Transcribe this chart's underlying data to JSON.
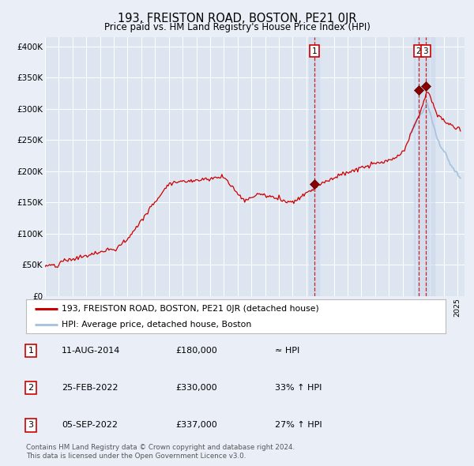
{
  "title": "193, FREISTON ROAD, BOSTON, PE21 0JR",
  "subtitle": "Price paid vs. HM Land Registry's House Price Index (HPI)",
  "background_color": "#eaeff7",
  "plot_bg_color": "#dde5f0",
  "grid_color": "#ffffff",
  "hpi_line_color": "#a8c4e0",
  "price_line_color": "#cc0000",
  "marker_color": "#990000",
  "ylabel_ticks": [
    "£0",
    "£50K",
    "£100K",
    "£150K",
    "£200K",
    "£250K",
    "£300K",
    "£350K",
    "£400K"
  ],
  "ylabel_values": [
    0,
    50000,
    100000,
    150000,
    200000,
    250000,
    300000,
    350000,
    400000
  ],
  "sale_dates": [
    2014.61,
    2022.15,
    2022.68
  ],
  "sale_prices": [
    180000,
    330000,
    337000
  ],
  "sale_labels": [
    "1",
    "2",
    "3"
  ],
  "legend_line1": "193, FREISTON ROAD, BOSTON, PE21 0JR (detached house)",
  "legend_line2": "HPI: Average price, detached house, Boston",
  "footer": "Contains HM Land Registry data © Crown copyright and database right 2024.\nThis data is licensed under the Open Government Licence v3.0.",
  "table_rows": [
    [
      "1",
      "11-AUG-2014",
      "£180,000",
      "≈ HPI"
    ],
    [
      "2",
      "25-FEB-2022",
      "£330,000",
      "33% ↑ HPI"
    ],
    [
      "3",
      "05-SEP-2022",
      "£337,000",
      "27% ↑ HPI"
    ]
  ]
}
